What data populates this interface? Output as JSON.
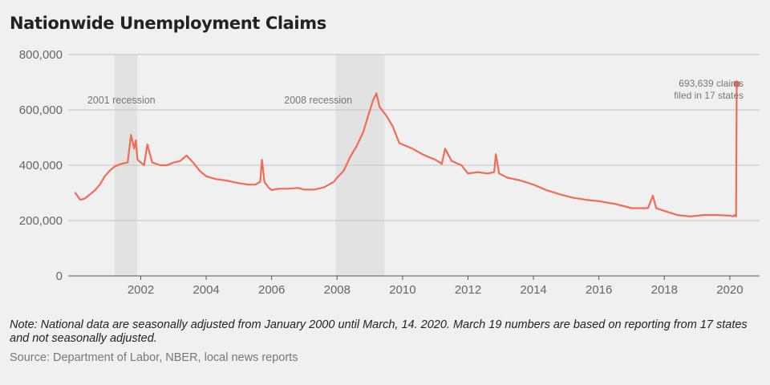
{
  "title": "Nationwide Unemployment Claims",
  "note": "Note: National data are seasonally adjusted from January 2000 until March, 14. 2020. March 19 numbers are based on reporting from 17 states and not seasonally adjusted.",
  "source": "Source: Department of Labor, NBER, local news reports",
  "colors": {
    "line": "#f26b55",
    "recession": "#e2e2e2",
    "grid": "#c2c2c2",
    "axis": "#555555"
  },
  "chart_data": {
    "type": "line",
    "title": "Nationwide Unemployment Claims",
    "xlabel": "",
    "ylabel": "",
    "xlim": [
      2000,
      2020.3
    ],
    "ylim": [
      0,
      800000
    ],
    "grid": true,
    "x_ticks": [
      2002,
      2004,
      2006,
      2008,
      2010,
      2012,
      2014,
      2016,
      2018,
      2020
    ],
    "x_tick_labels": [
      "2002",
      "2004",
      "2006",
      "2008",
      "2010",
      "2012",
      "2014",
      "2016",
      "2018",
      "2020"
    ],
    "y_ticks": [
      0,
      200000,
      400000,
      600000,
      800000
    ],
    "y_tick_labels": [
      "0",
      "200,000",
      "400,000",
      "600,000",
      "800,000"
    ],
    "recessions": [
      {
        "label": "2001 recession",
        "start": 2001.2,
        "end": 2001.9
      },
      {
        "label": "2008 recession",
        "start": 2007.95,
        "end": 2009.45
      }
    ],
    "annotation": {
      "lines": [
        "693,639 claims",
        "filed in 17 states"
      ],
      "x": 2020.21,
      "y": 693639
    },
    "series": [
      {
        "x": [
          2000.0,
          2000.15,
          2000.3,
          2000.45,
          2000.6,
          2000.75,
          2000.9,
          2001.05,
          2001.2,
          2001.4,
          2001.6,
          2001.7,
          2001.8,
          2001.85,
          2001.9,
          2002.0,
          2002.1,
          2002.2,
          2002.35,
          2002.6,
          2002.8,
          2003.0,
          2003.2,
          2003.4,
          2003.6,
          2003.8,
          2004.0,
          2004.3,
          2004.6,
          2005.0,
          2005.3,
          2005.5,
          2005.65,
          2005.7,
          2005.78,
          2005.9,
          2006.0,
          2006.2,
          2006.5,
          2006.8,
          2007.0,
          2007.3,
          2007.6,
          2007.9,
          2008.0,
          2008.2,
          2008.4,
          2008.6,
          2008.8,
          2008.95,
          2009.1,
          2009.2,
          2009.3,
          2009.5,
          2009.7,
          2009.9,
          2010.1,
          2010.3,
          2010.6,
          2010.8,
          2011.0,
          2011.2,
          2011.3,
          2011.5,
          2011.8,
          2012.0,
          2012.3,
          2012.6,
          2012.8,
          2012.85,
          2012.95,
          2013.2,
          2013.6,
          2014.0,
          2014.4,
          2014.8,
          2015.2,
          2015.6,
          2016.0,
          2016.5,
          2017.0,
          2017.5,
          2017.65,
          2017.75,
          2018.0,
          2018.4,
          2018.8,
          2019.2,
          2019.6,
          2020.0,
          2020.1,
          2020.15,
          2020.19,
          2020.21
        ],
        "values": [
          300000,
          275000,
          280000,
          295000,
          310000,
          330000,
          360000,
          380000,
          395000,
          405000,
          410000,
          510000,
          460000,
          490000,
          420000,
          410000,
          400000,
          475000,
          410000,
          400000,
          400000,
          410000,
          415000,
          435000,
          410000,
          380000,
          360000,
          350000,
          345000,
          335000,
          330000,
          330000,
          340000,
          420000,
          340000,
          320000,
          310000,
          315000,
          315000,
          318000,
          312000,
          312000,
          320000,
          340000,
          355000,
          380000,
          430000,
          470000,
          520000,
          580000,
          635000,
          660000,
          610000,
          580000,
          540000,
          480000,
          470000,
          460000,
          440000,
          430000,
          420000,
          405000,
          460000,
          415000,
          400000,
          370000,
          375000,
          370000,
          375000,
          440000,
          370000,
          355000,
          345000,
          330000,
          310000,
          295000,
          283000,
          275000,
          270000,
          260000,
          245000,
          245000,
          290000,
          245000,
          235000,
          220000,
          215000,
          220000,
          220000,
          218000,
          215000,
          220000,
          215000,
          693639
        ]
      }
    ]
  }
}
